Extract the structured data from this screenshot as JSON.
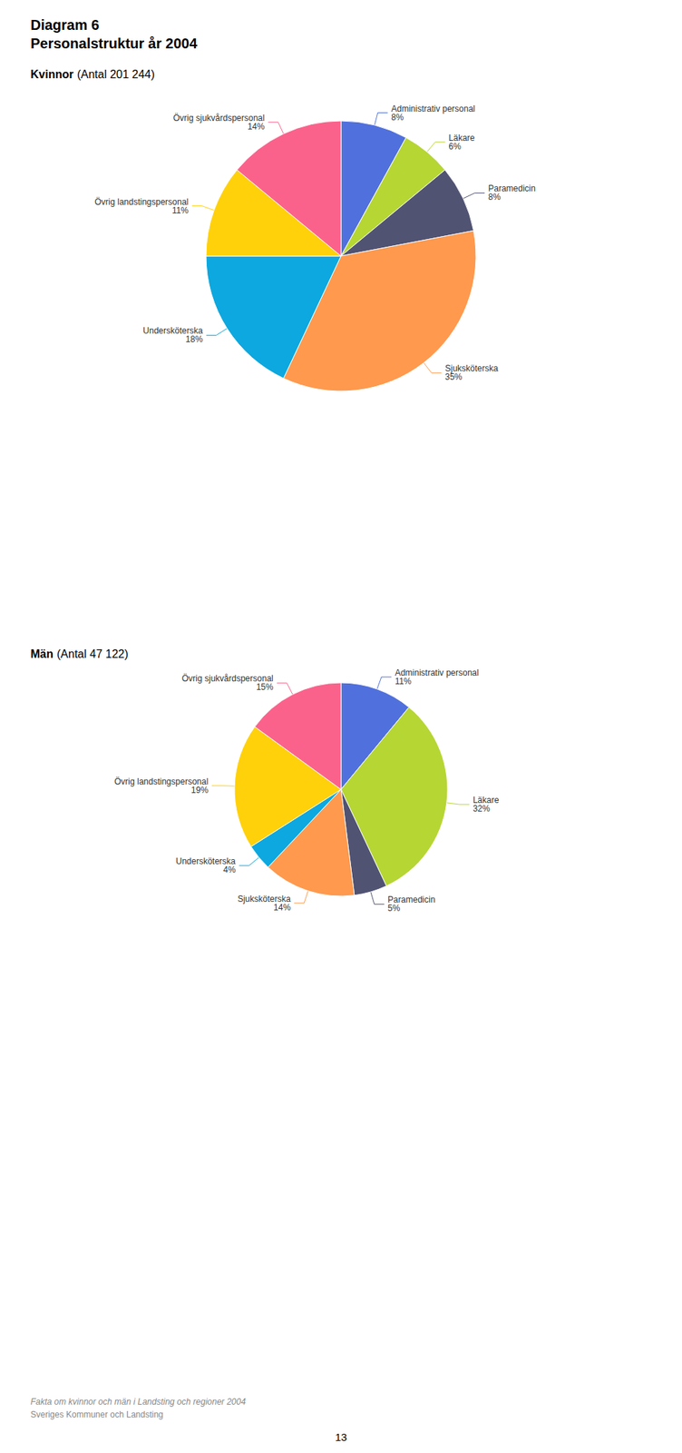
{
  "title": "Diagram 6",
  "subtitle": "Personalstruktur år 2004",
  "annotations": [
    "Fakta om kvinnor och män i Landsting och regioner 2004",
    "Sveriges Kommuner och Landsting",
    "13"
  ],
  "chart_data": [
    {
      "type": "pie",
      "title": "Kvinnor",
      "subtitle": "(Antal 201 244)",
      "categories": [
        "Administrativ personal",
        "Läkare",
        "Paramedicin",
        "Sjuksköterska",
        "Undersköterska",
        "Övrig landstingspersonal",
        "Övrig sjukvårdspersonal"
      ],
      "values": [
        8,
        6,
        8,
        35,
        18,
        11,
        14
      ],
      "value_labels": [
        "8%",
        "6%",
        "8%",
        "35%",
        "18%",
        "11%",
        "14%"
      ],
      "data_labels": true,
      "legend": false
    },
    {
      "type": "pie",
      "title": "Män",
      "subtitle": "(Antal 47 122)",
      "categories": [
        "Administrativ personal",
        "Läkare",
        "Paramedicin",
        "Sjuksköterska",
        "Undersköterska",
        "Övrig landstingspersonal",
        "Övrig sjukvårdspersonal"
      ],
      "values": [
        11,
        32,
        5,
        14,
        4,
        19,
        15
      ],
      "value_labels": [
        "11%",
        "32%",
        "5%",
        "14%",
        "4%",
        "19%",
        "15%"
      ],
      "data_labels": true,
      "legend": false
    }
  ]
}
